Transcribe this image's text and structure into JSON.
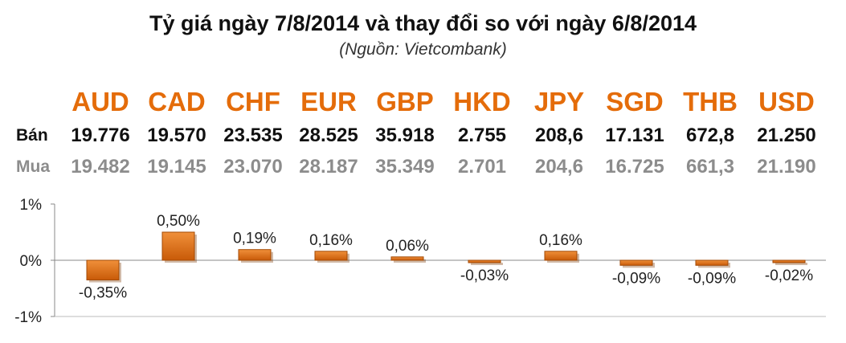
{
  "title": "Tỷ giá ngày 7/8/2014 và thay đổi so với ngày 6/8/2014",
  "subtitle": "(Nguồn: Vietcombank)",
  "row_labels": {
    "ban": "Bán",
    "mua": "Mua"
  },
  "currencies": [
    {
      "code": "AUD",
      "ban": "19.776",
      "mua": "19.482"
    },
    {
      "code": "CAD",
      "ban": "19.570",
      "mua": "19.145"
    },
    {
      "code": "CHF",
      "ban": "23.535",
      "mua": "23.070"
    },
    {
      "code": "EUR",
      "ban": "28.525",
      "mua": "28.187"
    },
    {
      "code": "GBP",
      "ban": "35.918",
      "mua": "35.349"
    },
    {
      "code": "HKD",
      "ban": "2.755",
      "mua": "2.701"
    },
    {
      "code": "JPY",
      "ban": "208,6",
      "mua": "204,6"
    },
    {
      "code": "SGD",
      "ban": "17.131",
      "mua": "16.725"
    },
    {
      "code": "THB",
      "ban": "672,8",
      "mua": "661,3"
    },
    {
      "code": "USD",
      "ban": "21.250",
      "mua": "21.190"
    }
  ],
  "colors": {
    "accent": "#e46c0a",
    "bar": "#e46c0a",
    "mua_text": "#8c8c8c"
  },
  "chart_data": {
    "type": "bar",
    "categories": [
      "AUD",
      "CAD",
      "CHF",
      "EUR",
      "GBP",
      "HKD",
      "JPY",
      "SGD",
      "THB",
      "USD"
    ],
    "values": [
      -0.35,
      0.5,
      0.19,
      0.16,
      0.06,
      -0.03,
      0.16,
      -0.09,
      -0.09,
      -0.02
    ],
    "data_labels": [
      "-0,35%",
      "0,50%",
      "0,19%",
      "0,16%",
      "0,06%",
      "-0,03%",
      "0,16%",
      "-0,09%",
      "-0,09%",
      "-0,02%"
    ],
    "ylim": [
      -1,
      1
    ],
    "yticks": [
      1,
      0,
      -1
    ],
    "ytick_labels": [
      "1%",
      "0%",
      "-1%"
    ],
    "grid": false,
    "legend": "none"
  }
}
